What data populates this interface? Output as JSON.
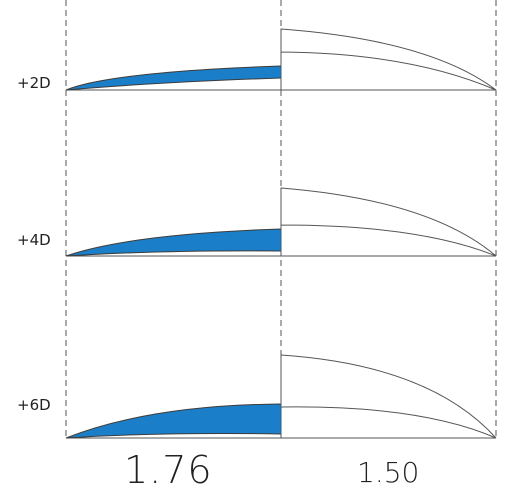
{
  "rows": [
    {
      "power": "+2D"
    },
    {
      "power": "+4D"
    },
    {
      "power": "+6D"
    }
  ],
  "indices": {
    "high": "1.76",
    "standard": "1.50"
  },
  "colors": {
    "high_index_fill": "#1a7fc8",
    "outline": "#555555",
    "background": "#ffffff"
  }
}
